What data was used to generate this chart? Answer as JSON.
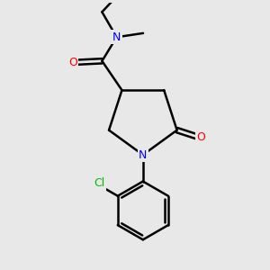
{
  "background_color": "#e8e8e8",
  "bond_color": "#000000",
  "N_color": "#0000ff",
  "O_color": "#ff0000",
  "Cl_color": "#00bb00",
  "line_width": 1.8,
  "figsize": [
    3.0,
    3.0
  ],
  "dpi": 100,
  "xlim": [
    0,
    10
  ],
  "ylim": [
    0,
    10
  ]
}
